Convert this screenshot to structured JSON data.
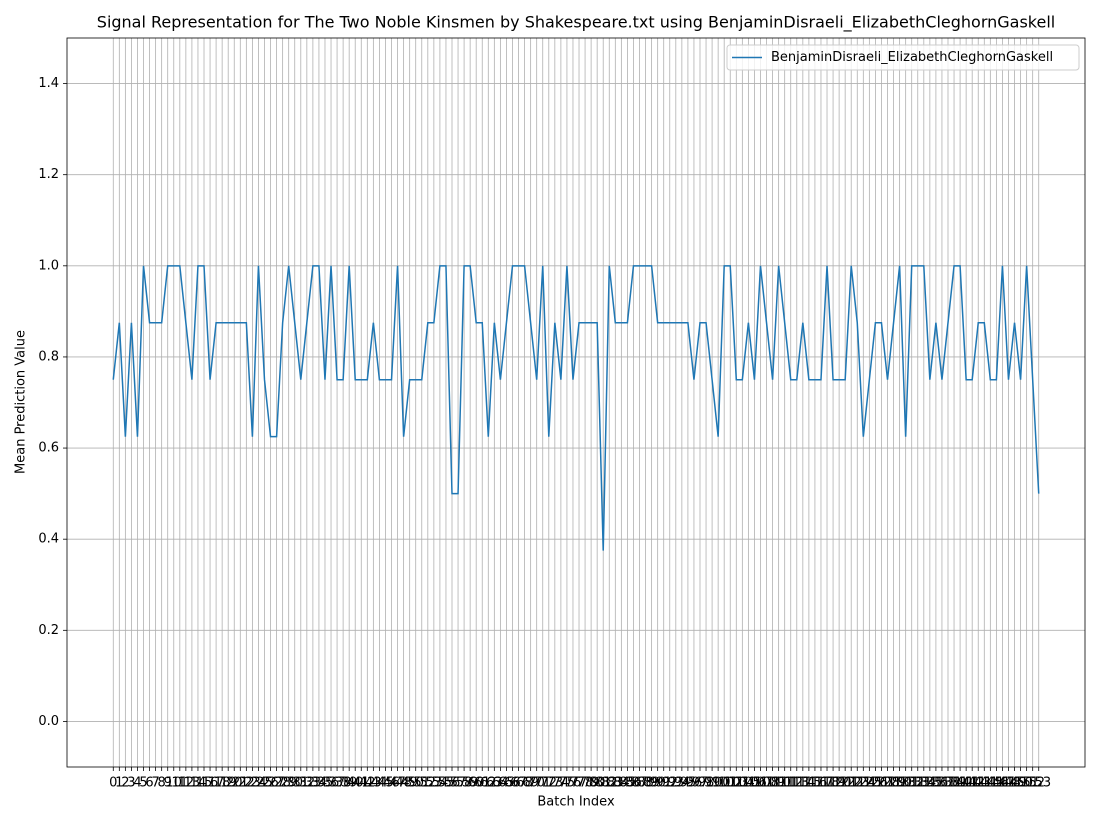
{
  "chart_data": {
    "type": "line",
    "title": "Signal Representation for The Two Noble Kinsmen by Shakespeare.txt using BenjaminDisraeli_ElizabethCleghornGaskell",
    "x_label": "Batch Index",
    "y_label": "Mean Prediction Value",
    "x": [
      0,
      1,
      2,
      3,
      4,
      5,
      6,
      7,
      8,
      9,
      10,
      11,
      12,
      13,
      14,
      15,
      16,
      17,
      18,
      19,
      20,
      21,
      22,
      23,
      24,
      25,
      26,
      27,
      28,
      29,
      30,
      31,
      32,
      33,
      34,
      35,
      36,
      37,
      38,
      39,
      40,
      41,
      42,
      43,
      44,
      45,
      46,
      47,
      48,
      49,
      50,
      51,
      52,
      53,
      54,
      55,
      56,
      57,
      58,
      59,
      60,
      61,
      62,
      63,
      64,
      65,
      66,
      67,
      68,
      69,
      70,
      71,
      72,
      73,
      74,
      75,
      76,
      77,
      78,
      79,
      80,
      81,
      82,
      83,
      84,
      85,
      86,
      87,
      88,
      89,
      90,
      91,
      92,
      93,
      94,
      95,
      96,
      97,
      98,
      99,
      100,
      101,
      102,
      103,
      104,
      105,
      106,
      107,
      108,
      109,
      110,
      111,
      112,
      113,
      114,
      115,
      116,
      117,
      118,
      119,
      120,
      121,
      122,
      123,
      124,
      125,
      126,
      127,
      128,
      129,
      130,
      131,
      132,
      133,
      134,
      135,
      136,
      137,
      138,
      139,
      140,
      141,
      142,
      143,
      144,
      145,
      146,
      147,
      148,
      149,
      150,
      151,
      152,
      153
    ],
    "series": [
      {
        "name": "BenjaminDisraeli_ElizabethCleghornGaskell",
        "color": "#1f77b4",
        "values": [
          0.75,
          0.875,
          0.625,
          0.875,
          0.625,
          1.0,
          0.875,
          0.875,
          0.875,
          1.0,
          1.0,
          1.0,
          0.875,
          0.75,
          1.0,
          1.0,
          0.75,
          0.875,
          0.875,
          0.875,
          0.875,
          0.875,
          0.875,
          0.625,
          1.0,
          0.75,
          0.625,
          0.625,
          0.875,
          1.0,
          0.875,
          0.75,
          0.875,
          1.0,
          1.0,
          0.75,
          1.0,
          0.75,
          0.75,
          1.0,
          0.75,
          0.75,
          0.75,
          0.875,
          0.75,
          0.75,
          0.75,
          1.0,
          0.625,
          0.75,
          0.75,
          0.75,
          0.875,
          0.875,
          1.0,
          1.0,
          0.5,
          0.5,
          1.0,
          1.0,
          0.875,
          0.875,
          0.625,
          0.875,
          0.75,
          0.875,
          1.0,
          1.0,
          1.0,
          0.875,
          0.75,
          1.0,
          0.625,
          0.875,
          0.75,
          1.0,
          0.75,
          0.875,
          0.875,
          0.875,
          0.875,
          0.375,
          1.0,
          0.875,
          0.875,
          0.875,
          1.0,
          1.0,
          1.0,
          1.0,
          0.875,
          0.875,
          0.875,
          0.875,
          0.875,
          0.875,
          0.75,
          0.875,
          0.875,
          0.75,
          0.625,
          1.0,
          1.0,
          0.75,
          0.75,
          0.875,
          0.75,
          1.0,
          0.875,
          0.75,
          1.0,
          0.875,
          0.75,
          0.75,
          0.875,
          0.75,
          0.75,
          0.75,
          1.0,
          0.75,
          0.75,
          0.75,
          1.0,
          0.875,
          0.625,
          0.75,
          0.875,
          0.875,
          0.75,
          0.875,
          1.0,
          0.625,
          1.0,
          1.0,
          1.0,
          0.75,
          0.875,
          0.75,
          0.875,
          1.0,
          1.0,
          0.75,
          0.75,
          0.875,
          0.875,
          0.75,
          0.75,
          1.0,
          0.75,
          0.875,
          0.75,
          1.0,
          0.75,
          0.5
        ]
      }
    ],
    "xlim": [
      -7.65,
      160.65
    ],
    "ylim": [
      -0.1,
      1.5
    ],
    "xticks": [
      0,
      1,
      2,
      3,
      4,
      5,
      6,
      7,
      8,
      9,
      10,
      11,
      12,
      13,
      14,
      15,
      16,
      17,
      18,
      19,
      20,
      21,
      22,
      23,
      24,
      25,
      26,
      27,
      28,
      29,
      30,
      31,
      32,
      33,
      34,
      35,
      36,
      37,
      38,
      39,
      40,
      41,
      42,
      43,
      44,
      45,
      46,
      47,
      48,
      49,
      50,
      51,
      52,
      53,
      54,
      55,
      56,
      57,
      58,
      59,
      60,
      61,
      62,
      63,
      64,
      65,
      66,
      67,
      68,
      69,
      70,
      71,
      72,
      73,
      74,
      75,
      76,
      77,
      78,
      79,
      80,
      81,
      82,
      83,
      84,
      85,
      86,
      87,
      88,
      89,
      90,
      91,
      92,
      93,
      94,
      95,
      96,
      97,
      98,
      99,
      100,
      101,
      102,
      103,
      104,
      105,
      106,
      107,
      108,
      109,
      110,
      111,
      112,
      113,
      114,
      115,
      116,
      117,
      118,
      119,
      120,
      121,
      122,
      123,
      124,
      125,
      126,
      127,
      128,
      129,
      130,
      131,
      132,
      133,
      134,
      135,
      136,
      137,
      138,
      139,
      140,
      141,
      142,
      143,
      144,
      145,
      146,
      147,
      148,
      149,
      150,
      151,
      152,
      153
    ],
    "yticks": [
      {
        "value": 0,
        "label": "0.0"
      },
      0.2,
      0.4,
      0.6,
      0.8,
      {
        "value": 1,
        "label": "1.0"
      },
      1.2,
      1.4
    ],
    "grid": true,
    "legend": "upper right"
  }
}
